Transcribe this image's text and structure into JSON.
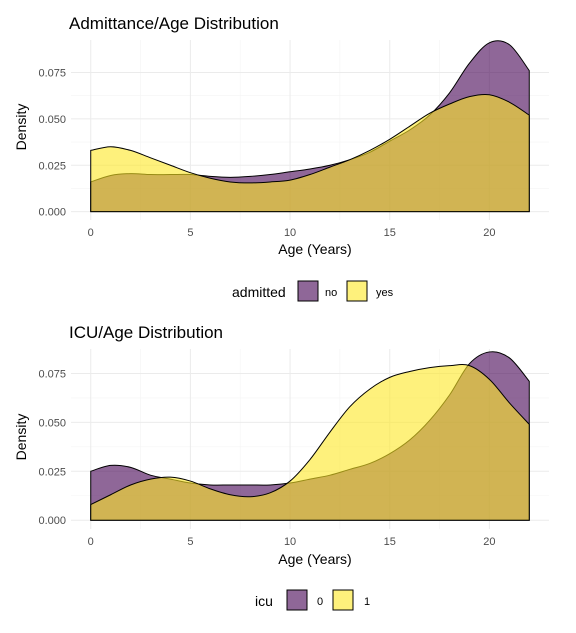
{
  "colors": {
    "level1": "#440154",
    "level2": "#FDE725"
  },
  "chart_data": [
    {
      "type": "area",
      "title": "Admittance/Age Distribution",
      "xlabel": "Age (Years)",
      "ylabel": "Density",
      "xlim": [
        0,
        22
      ],
      "ylim": [
        0,
        0.0925
      ],
      "x_ticks": [
        0,
        5,
        10,
        15,
        20
      ],
      "y_ticks": [
        0.0,
        0.025,
        0.05,
        0.075
      ],
      "y_tick_labels": [
        "0.000",
        "0.025",
        "0.050",
        "0.075"
      ],
      "grid": true,
      "legend": {
        "title": "admitted",
        "position": "bottom",
        "labels": [
          "no",
          "yes"
        ]
      },
      "series": [
        {
          "name": "no",
          "color": "#440154",
          "x": [
            0,
            1,
            2,
            3,
            4,
            5,
            6,
            7,
            8,
            9,
            10,
            11,
            12,
            13,
            14,
            15,
            16,
            17,
            18,
            19,
            20,
            21,
            22
          ],
          "y": [
            0.016,
            0.0195,
            0.0205,
            0.02,
            0.02,
            0.02,
            0.019,
            0.0185,
            0.019,
            0.02,
            0.0215,
            0.023,
            0.025,
            0.028,
            0.032,
            0.038,
            0.044,
            0.052,
            0.064,
            0.08,
            0.091,
            0.09,
            0.076
          ]
        },
        {
          "name": "yes",
          "color": "#FDE725",
          "x": [
            0,
            1,
            2,
            3,
            4,
            5,
            6,
            7,
            8,
            9,
            10,
            11,
            12,
            13,
            14,
            15,
            16,
            17,
            18,
            19,
            20,
            21,
            22
          ],
          "y": [
            0.033,
            0.035,
            0.033,
            0.029,
            0.025,
            0.021,
            0.018,
            0.016,
            0.0155,
            0.016,
            0.017,
            0.02,
            0.024,
            0.028,
            0.033,
            0.039,
            0.046,
            0.053,
            0.058,
            0.062,
            0.063,
            0.059,
            0.052
          ]
        }
      ]
    },
    {
      "type": "area",
      "title": "ICU/Age Distribution",
      "xlabel": "Age (Years)",
      "ylabel": "Density",
      "xlim": [
        0,
        22
      ],
      "ylim": [
        0,
        0.0875
      ],
      "x_ticks": [
        0,
        5,
        10,
        15,
        20
      ],
      "y_ticks": [
        0.0,
        0.025,
        0.05,
        0.075
      ],
      "y_tick_labels": [
        "0.000",
        "0.025",
        "0.050",
        "0.075"
      ],
      "grid": true,
      "legend": {
        "title": "icu",
        "position": "bottom",
        "labels": [
          "0",
          "1"
        ]
      },
      "series": [
        {
          "name": "0",
          "color": "#440154",
          "x": [
            0,
            1,
            2,
            3,
            4,
            5,
            6,
            7,
            8,
            9,
            10,
            11,
            12,
            13,
            14,
            15,
            16,
            17,
            18,
            19,
            20,
            21,
            22
          ],
          "y": [
            0.025,
            0.028,
            0.027,
            0.023,
            0.021,
            0.019,
            0.018,
            0.018,
            0.018,
            0.018,
            0.019,
            0.021,
            0.023,
            0.026,
            0.029,
            0.034,
            0.041,
            0.051,
            0.064,
            0.08,
            0.086,
            0.083,
            0.071
          ]
        },
        {
          "name": "1",
          "color": "#FDE725",
          "x": [
            0,
            1,
            2,
            3,
            4,
            5,
            6,
            7,
            8,
            9,
            10,
            11,
            12,
            13,
            14,
            15,
            16,
            17,
            18,
            19,
            20,
            21,
            22
          ],
          "y": [
            0.008,
            0.013,
            0.018,
            0.021,
            0.022,
            0.02,
            0.016,
            0.013,
            0.012,
            0.014,
            0.02,
            0.031,
            0.045,
            0.058,
            0.067,
            0.073,
            0.076,
            0.078,
            0.079,
            0.079,
            0.072,
            0.06,
            0.049
          ]
        }
      ]
    }
  ]
}
